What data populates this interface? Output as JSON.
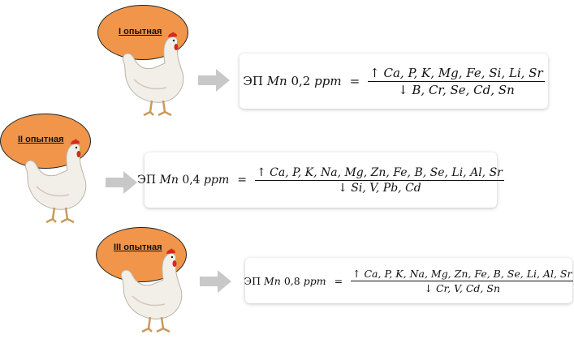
{
  "groups": [
    {
      "label": "I опытная",
      "prefix": "ЭП",
      "element": "Mn",
      "dose": "0,2",
      "unit": "ppm",
      "equals": "=",
      "up": "↑ Ca, P, K, Mg, Fe, Si, Li, Sr",
      "down": "↓ B, Cr, Se, Cd, Sn"
    },
    {
      "label": "II опытная",
      "prefix": "ЭП",
      "element": "Mn",
      "dose": "0,4",
      "unit": "ppm",
      "equals": "=",
      "up": "↑ Ca, P, K, Na, Mg, Zn, Fe, B, Se, Li, Al, Sr",
      "down": "↓ Si, V, Pb, Cd"
    },
    {
      "label": "III опытная",
      "prefix": "ЭП",
      "element": "Mn",
      "dose": "0,8",
      "unit": "ppm",
      "equals": "=",
      "up": "↑ Ca, P, K, Na, Mg, Zn, Fe, B, Se, Li, Al, Sr",
      "down": "↓ Cr, V, Cd, Sn"
    }
  ],
  "colors": {
    "ellipse": "#f0954a",
    "arrow": "#c8c8c8",
    "comb": "#d62a1e"
  }
}
